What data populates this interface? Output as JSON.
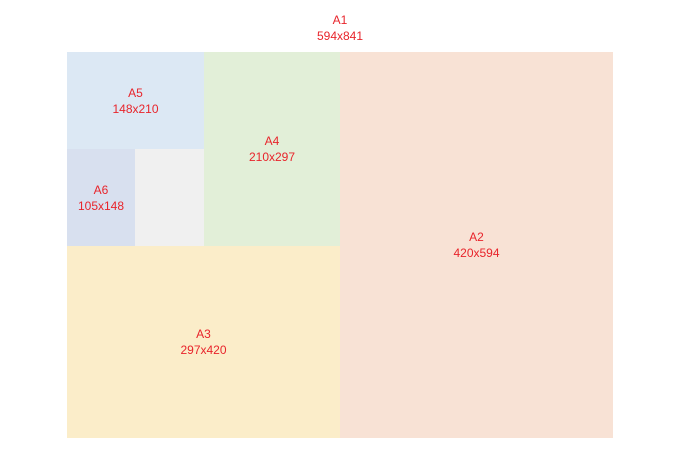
{
  "sheet": {
    "name": "A1",
    "size": "594x841"
  },
  "regions": [
    {
      "id": "a2",
      "name": "A2",
      "size": "420x594",
      "color": "#f8e2d5"
    },
    {
      "id": "a3",
      "name": "A3",
      "size": "297x420",
      "color": "#fbedc9"
    },
    {
      "id": "a4",
      "name": "A4",
      "size": "210x297",
      "color": "#e2efd8"
    },
    {
      "id": "a5",
      "name": "A5",
      "size": "148x210",
      "color": "#dce8f4"
    },
    {
      "id": "a6",
      "name": "A6",
      "size": "105x148",
      "color": "#d8e0ef"
    },
    {
      "id": "a7",
      "name": "",
      "size": "",
      "color": "#f0f0f0"
    }
  ],
  "label_color": "#e8242b"
}
